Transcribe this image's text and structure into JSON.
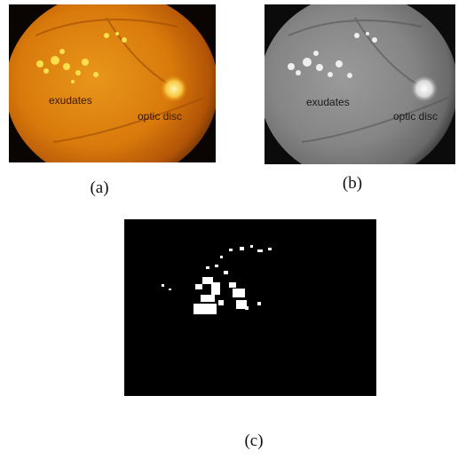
{
  "panels": [
    {
      "label": "(a)",
      "annotations": [
        "exudates",
        "optic disc"
      ]
    },
    {
      "label": "(b)",
      "annotations": [
        "exudates",
        "optic disc"
      ]
    },
    {
      "label": "(c)"
    }
  ]
}
